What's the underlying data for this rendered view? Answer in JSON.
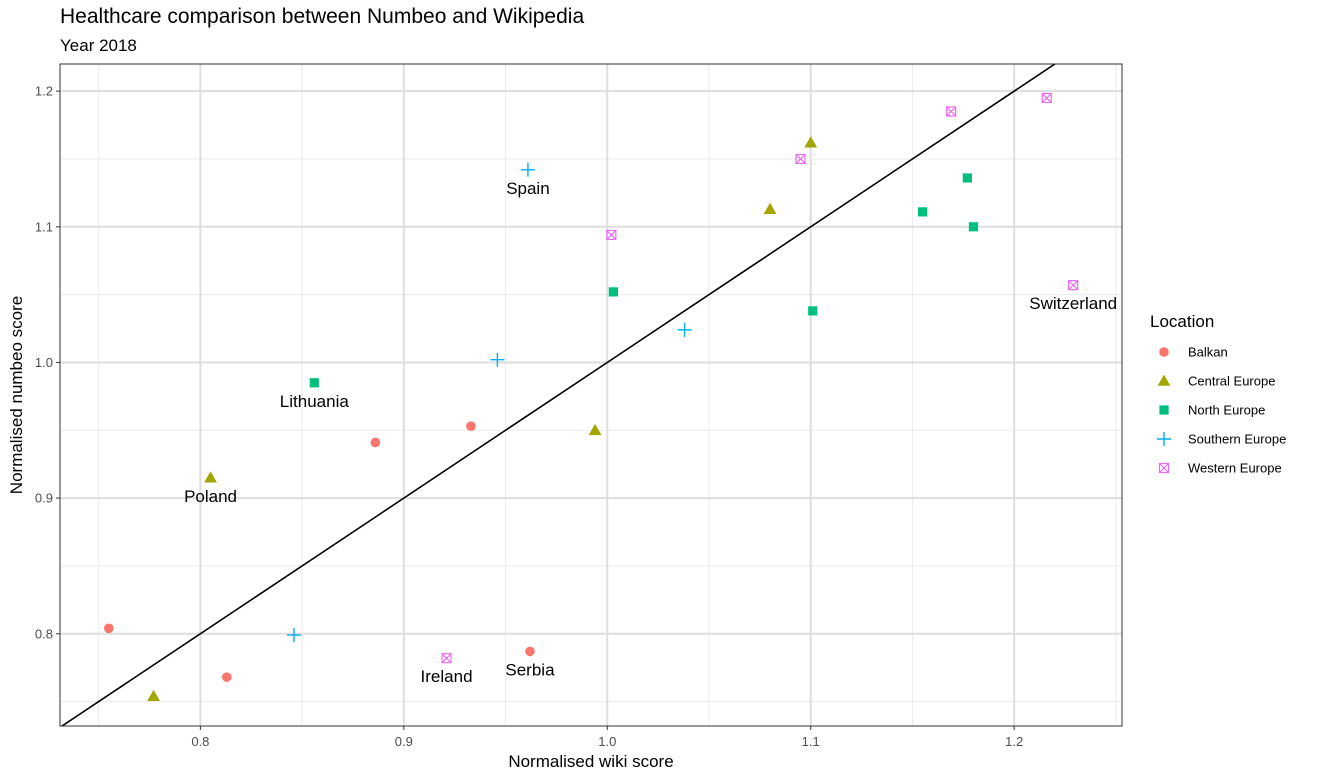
{
  "chart_data": {
    "type": "scatter",
    "title": "Healthcare comparison between Numbeo and Wikipedia",
    "subtitle": "Year 2018",
    "xlabel": "Normalised wiki score",
    "ylabel": "Normalised numbeo score",
    "xlim": [
      0.731,
      1.253
    ],
    "ylim": [
      0.732,
      1.22
    ],
    "x_ticks": [
      0.8,
      0.9,
      1.0,
      1.1,
      1.2
    ],
    "x_tick_labels": [
      "0.8",
      "0.9",
      "1.0",
      "1.1",
      "1.2"
    ],
    "y_ticks": [
      0.8,
      0.9,
      1.0,
      1.1,
      1.2
    ],
    "y_tick_labels": [
      "0.8",
      "0.9",
      "1.0",
      "1.1",
      "1.2"
    ],
    "grid": true,
    "reference_line": {
      "slope": 1,
      "intercept": 0
    },
    "legend": {
      "title": "Location",
      "placement": "right"
    },
    "series": [
      {
        "name": "Balkan",
        "shape": "circle",
        "color": "#F8766D",
        "points": [
          [
            0.755,
            0.804
          ],
          [
            0.813,
            0.768
          ],
          [
            0.886,
            0.941
          ],
          [
            0.933,
            0.953
          ],
          [
            0.962,
            0.787
          ]
        ]
      },
      {
        "name": "Central Europe",
        "shape": "triangle",
        "color": "#A3A500",
        "points": [
          [
            0.777,
            0.754
          ],
          [
            0.805,
            0.915
          ],
          [
            0.994,
            0.95
          ],
          [
            1.08,
            1.113
          ],
          [
            1.1,
            1.162
          ]
        ]
      },
      {
        "name": "North Europe",
        "shape": "square",
        "color": "#00BF7D",
        "points": [
          [
            0.856,
            0.985
          ],
          [
            1.003,
            1.052
          ],
          [
            1.101,
            1.038
          ],
          [
            1.155,
            1.111
          ],
          [
            1.177,
            1.136
          ],
          [
            1.18,
            1.1
          ]
        ]
      },
      {
        "name": "Southern Europe",
        "shape": "plus",
        "color": "#00B0F6",
        "points": [
          [
            0.846,
            0.799
          ],
          [
            0.946,
            1.002
          ],
          [
            0.961,
            1.142
          ],
          [
            1.038,
            1.024
          ]
        ]
      },
      {
        "name": "Western Europe",
        "shape": "boxx",
        "color": "#E76BF3",
        "points": [
          [
            0.921,
            0.782
          ],
          [
            1.002,
            1.094
          ],
          [
            1.095,
            1.15
          ],
          [
            1.169,
            1.185
          ],
          [
            1.216,
            1.195
          ],
          [
            1.229,
            1.057
          ]
        ]
      }
    ],
    "annotations": [
      {
        "text": "Spain",
        "x": 0.961,
        "y": 1.142
      },
      {
        "text": "Lithuania",
        "x": 0.856,
        "y": 0.985
      },
      {
        "text": "Poland",
        "x": 0.805,
        "y": 0.915
      },
      {
        "text": "Ireland",
        "x": 0.921,
        "y": 0.782
      },
      {
        "text": "Serbia",
        "x": 0.962,
        "y": 0.787
      },
      {
        "text": "Switzerland",
        "x": 1.229,
        "y": 1.057
      }
    ]
  }
}
